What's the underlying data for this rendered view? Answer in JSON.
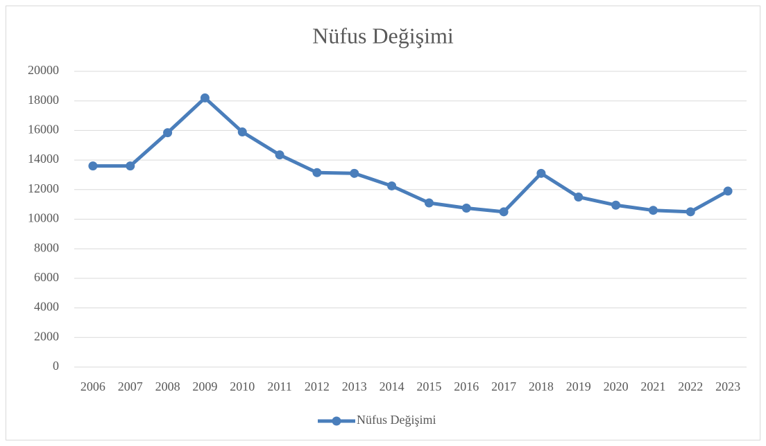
{
  "chart_data": {
    "type": "line",
    "title": "Nüfus Değişimi",
    "categories": [
      "2006",
      "2007",
      "2008",
      "2009",
      "2010",
      "2011",
      "2012",
      "2013",
      "2014",
      "2015",
      "2016",
      "2017",
      "2018",
      "2019",
      "2020",
      "2021",
      "2022",
      "2023"
    ],
    "series": [
      {
        "name": "Nüfus Değişimi",
        "color": "#4a7ebb",
        "values": [
          13600,
          13600,
          15850,
          18200,
          15900,
          14350,
          13150,
          13100,
          12250,
          11100,
          10750,
          10500,
          13100,
          11500,
          10950,
          10600,
          10500,
          11900
        ]
      }
    ],
    "ylim": [
      0,
      20000
    ],
    "yticks": [
      0,
      2000,
      4000,
      6000,
      8000,
      10000,
      12000,
      14000,
      16000,
      18000,
      20000
    ],
    "grid": true,
    "legend": "bottom"
  }
}
